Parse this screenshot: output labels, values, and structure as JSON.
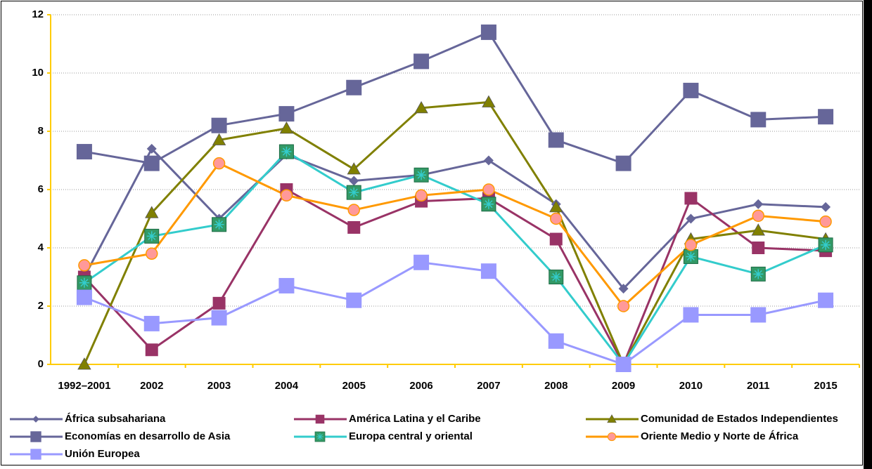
{
  "chart_data": {
    "type": "line",
    "categories": [
      "1992–2001",
      "2002",
      "2003",
      "2004",
      "2005",
      "2006",
      "2007",
      "2008",
      "2009",
      "2010",
      "2011",
      "2015"
    ],
    "ylim": [
      0,
      12
    ],
    "yticks": [
      0,
      2,
      4,
      6,
      8,
      10,
      12
    ],
    "grid": true,
    "legend": "bottom",
    "series": [
      {
        "name": "África subsahariana",
        "color": "#666699",
        "marker": "diamond",
        "values": [
          3.0,
          7.4,
          5.0,
          7.2,
          6.3,
          6.5,
          7.0,
          5.5,
          2.6,
          5.0,
          5.5,
          5.4
        ]
      },
      {
        "name": "América Latina y el Caribe",
        "color": "#993366",
        "marker": "square",
        "values": [
          3.0,
          0.5,
          2.1,
          6.0,
          4.7,
          5.6,
          5.7,
          4.3,
          0,
          5.7,
          4.0,
          3.9
        ]
      },
      {
        "name": "Comunidad de Estados Independientes",
        "color": "#808000",
        "marker": "triangle",
        "values": [
          0,
          5.2,
          7.7,
          8.1,
          6.7,
          8.8,
          9.0,
          5.4,
          0,
          4.3,
          4.6,
          4.3
        ]
      },
      {
        "name": "Economías en desarrollo de Asia",
        "color": "#666699",
        "marker": "bigsquare",
        "values": [
          7.3,
          6.9,
          8.2,
          8.6,
          9.5,
          10.4,
          11.4,
          7.7,
          6.9,
          9.4,
          8.4,
          8.5
        ]
      },
      {
        "name": "Europa central y oriental",
        "color": "#33cccc",
        "marker": "star",
        "values": [
          2.8,
          4.4,
          4.8,
          7.3,
          5.9,
          6.5,
          5.5,
          3.0,
          0,
          3.7,
          3.1,
          4.1
        ]
      },
      {
        "name": "Oriente Medio y Norte de África",
        "color": "#ff9900",
        "marker": "circle",
        "values": [
          3.4,
          3.8,
          6.9,
          5.8,
          5.3,
          5.8,
          6.0,
          5.0,
          2.0,
          4.1,
          5.1,
          4.9
        ]
      },
      {
        "name": "Unión Europea",
        "color": "#9999ff",
        "marker": "square-light",
        "values": [
          2.3,
          1.4,
          1.6,
          2.7,
          2.2,
          3.5,
          3.2,
          0.8,
          0,
          1.7,
          1.7,
          2.2
        ]
      }
    ]
  }
}
